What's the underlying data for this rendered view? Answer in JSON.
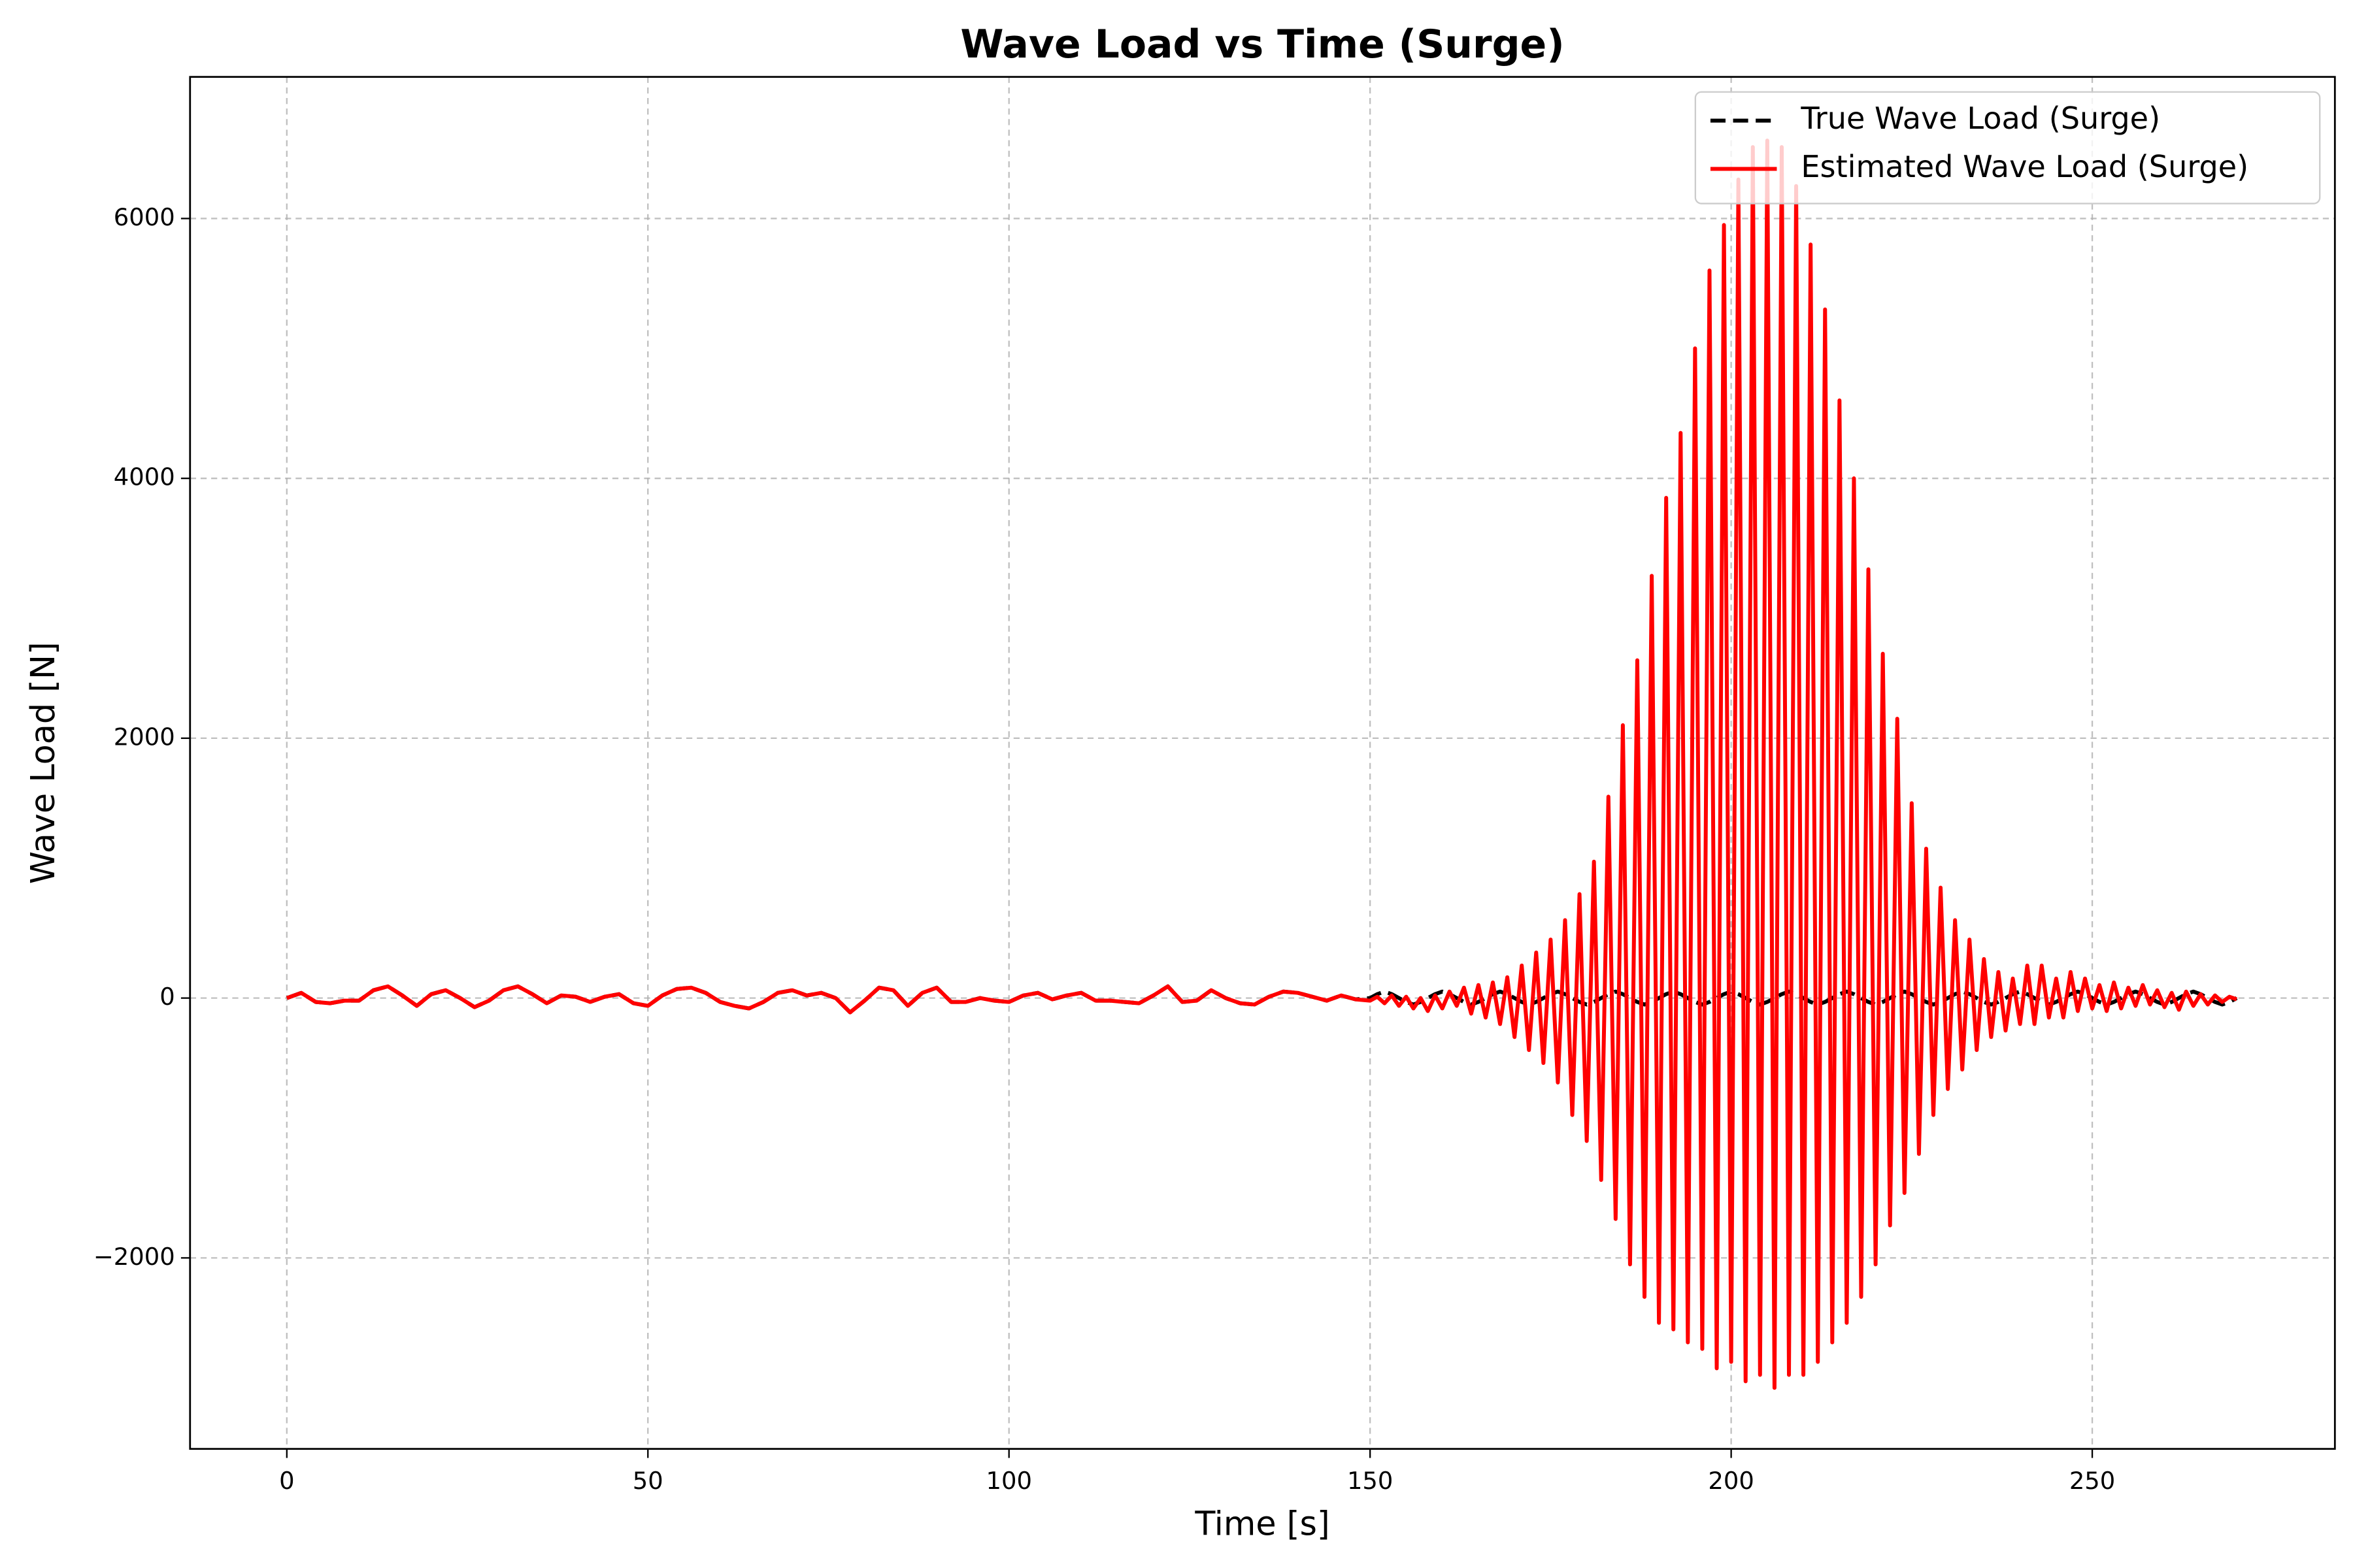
{
  "chart_data": {
    "type": "line",
    "title": "Wave Load vs Time (Surge)",
    "x_label": "Time [s]",
    "y_label": "Wave Load [N]",
    "xlim": [
      -13.4,
      283.6
    ],
    "ylim": [
      -3470,
      7090
    ],
    "xticks": [
      0,
      50,
      100,
      150,
      200,
      250
    ],
    "yticks": [
      {
        "value": -2000,
        "label": "−2000"
      },
      0,
      2000,
      4000,
      6000
    ],
    "grid": true,
    "legend_position": "upper right",
    "x": [
      0,
      2,
      4,
      6,
      8,
      10,
      12,
      14,
      16,
      18,
      20,
      22,
      24,
      26,
      28,
      30,
      32,
      34,
      36,
      38,
      40,
      42,
      44,
      46,
      48,
      50,
      52,
      54,
      56,
      58,
      60,
      62,
      64,
      66,
      68,
      70,
      72,
      74,
      76,
      78,
      80,
      82,
      84,
      86,
      88,
      90,
      92,
      94,
      96,
      98,
      100,
      102,
      104,
      106,
      108,
      110,
      112,
      114,
      116,
      118,
      120,
      122,
      124,
      126,
      128,
      130,
      132,
      134,
      136,
      138,
      140,
      142,
      144,
      146,
      148,
      150,
      151,
      152,
      153,
      154,
      155,
      156,
      157,
      158,
      159,
      160,
      161,
      162,
      163,
      164,
      165,
      166,
      167,
      168,
      169,
      170,
      171,
      172,
      173,
      174,
      175,
      176,
      177,
      178,
      179,
      180,
      181,
      182,
      183,
      184,
      185,
      186,
      187,
      188,
      189,
      190,
      191,
      192,
      193,
      194,
      195,
      196,
      197,
      198,
      199,
      200,
      201,
      202,
      203,
      204,
      205,
      206,
      207,
      208,
      209,
      210,
      211,
      212,
      213,
      214,
      215,
      216,
      217,
      218,
      219,
      220,
      221,
      222,
      223,
      224,
      225,
      226,
      227,
      228,
      229,
      230,
      231,
      232,
      233,
      234,
      235,
      236,
      237,
      238,
      239,
      240,
      241,
      242,
      243,
      244,
      245,
      246,
      247,
      248,
      249,
      250,
      251,
      252,
      253,
      254,
      255,
      256,
      257,
      258,
      259,
      260,
      261,
      262,
      263,
      264,
      265,
      266,
      267,
      268,
      269,
      270
    ],
    "series": [
      {
        "name": "True Wave Load (Surge)",
        "color": "#000000",
        "dash": true,
        "values": [
          0,
          40,
          -30,
          -40,
          -20,
          -20,
          60,
          90,
          20,
          -60,
          30,
          60,
          0,
          -70,
          -20,
          60,
          90,
          30,
          -40,
          20,
          10,
          -30,
          10,
          30,
          -40,
          -60,
          20,
          70,
          80,
          40,
          -30,
          -60,
          -80,
          -30,
          40,
          60,
          20,
          40,
          0,
          -110,
          -20,
          80,
          60,
          -60,
          40,
          80,
          -30,
          -30,
          0,
          -20,
          -30,
          20,
          40,
          -10,
          20,
          40,
          -20,
          -20,
          -30,
          -40,
          20,
          90,
          -30,
          -20,
          60,
          0,
          -40,
          -50,
          10,
          50,
          40,
          10,
          -20,
          20,
          -10,
          0,
          30,
          50,
          30,
          0,
          -30,
          -50,
          -30,
          0,
          30,
          50,
          30,
          0,
          -30,
          -50,
          -30,
          0,
          30,
          50,
          30,
          0,
          -30,
          -50,
          -30,
          0,
          30,
          50,
          30,
          0,
          -30,
          -50,
          -30,
          0,
          30,
          50,
          30,
          0,
          -30,
          -50,
          -30,
          0,
          30,
          50,
          30,
          0,
          -30,
          -50,
          -30,
          0,
          30,
          50,
          30,
          0,
          -30,
          -50,
          -30,
          0,
          30,
          50,
          30,
          0,
          -30,
          -50,
          -30,
          0,
          30,
          50,
          30,
          0,
          -30,
          -50,
          -30,
          0,
          30,
          50,
          30,
          0,
          -30,
          -50,
          -30,
          0,
          30,
          50,
          30,
          0,
          -30,
          -50,
          -30,
          0,
          30,
          50,
          30,
          0,
          -30,
          -50,
          -30,
          0,
          30,
          50,
          30,
          0,
          -30,
          -50,
          -30,
          0,
          30,
          50,
          30,
          0,
          -30,
          -50,
          -30,
          0,
          30,
          50,
          30,
          0,
          -30,
          -50,
          -30,
          0
        ]
      },
      {
        "name": "Estimated Wave Load (Surge)",
        "color": "#ff0000",
        "dash": false,
        "values": [
          0,
          40,
          -30,
          -40,
          -20,
          -20,
          60,
          90,
          20,
          -60,
          30,
          60,
          0,
          -70,
          -20,
          60,
          90,
          30,
          -40,
          20,
          10,
          -30,
          10,
          30,
          -40,
          -60,
          20,
          70,
          80,
          40,
          -30,
          -60,
          -80,
          -30,
          40,
          60,
          20,
          40,
          0,
          -110,
          -20,
          80,
          60,
          -60,
          40,
          80,
          -30,
          -30,
          0,
          -20,
          -30,
          20,
          40,
          -10,
          20,
          40,
          -20,
          -20,
          -30,
          -40,
          20,
          90,
          -30,
          -20,
          60,
          0,
          -40,
          -50,
          10,
          50,
          40,
          10,
          -20,
          20,
          -10,
          -20,
          10,
          -40,
          20,
          -60,
          10,
          -80,
          0,
          -100,
          20,
          -80,
          50,
          -60,
          80,
          -120,
          100,
          -150,
          120,
          -200,
          160,
          -300,
          250,
          -400,
          350,
          -500,
          450,
          -650,
          600,
          -900,
          800,
          -1100,
          1050,
          -1400,
          1550,
          -1700,
          2100,
          -2050,
          2600,
          -2300,
          3250,
          -2500,
          3850,
          -2550,
          4350,
          -2650,
          5000,
          -2700,
          5600,
          -2850,
          5950,
          -2800,
          6300,
          -2950,
          6550,
          -2900,
          6600,
          -3000,
          6550,
          -2900,
          6250,
          -2900,
          5800,
          -2800,
          5300,
          -2650,
          4600,
          -2500,
          4000,
          -2300,
          3300,
          -2050,
          2650,
          -1750,
          2150,
          -1500,
          1500,
          -1200,
          1150,
          -900,
          850,
          -700,
          600,
          -550,
          450,
          -400,
          300,
          -300,
          200,
          -250,
          150,
          -200,
          250,
          -200,
          250,
          -150,
          150,
          -150,
          200,
          -100,
          150,
          -80,
          100,
          -100,
          120,
          -80,
          80,
          -60,
          100,
          -50,
          60,
          -70,
          40,
          -90,
          50,
          -60,
          30,
          -50,
          20,
          -30,
          10,
          -10
        ]
      }
    ]
  }
}
